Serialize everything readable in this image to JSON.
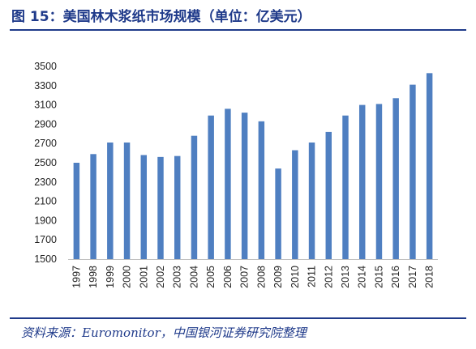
{
  "title": "图 15：美国林木浆纸市场规模（单位：亿美元）",
  "source": "资料来源：Euromonitor，中国银河证券研究院整理",
  "colors": {
    "bar": "#4f7fc1",
    "accent": "#1f3a8a",
    "axis": "#bfbfbf"
  },
  "chart_data": {
    "type": "bar",
    "title": "",
    "xlabel": "",
    "ylabel": "",
    "ylim": [
      1500,
      3500
    ],
    "yticks": [
      1500,
      1700,
      1900,
      2100,
      2300,
      2500,
      2700,
      2900,
      3100,
      3300,
      3500
    ],
    "grid": false,
    "legend": "none",
    "categories": [
      "1997",
      "1998",
      "1999",
      "2000",
      "2001",
      "2002",
      "2003",
      "2004",
      "2005",
      "2006",
      "2007",
      "2008",
      "2009",
      "2010",
      "2011",
      "2012",
      "2013",
      "2014",
      "2015",
      "2016",
      "2017",
      "2018"
    ],
    "values": [
      2500,
      2590,
      2710,
      2710,
      2580,
      2560,
      2570,
      2780,
      2990,
      3060,
      3020,
      2930,
      2440,
      2630,
      2710,
      2820,
      2990,
      3100,
      3110,
      3170,
      3310,
      3430
    ]
  }
}
